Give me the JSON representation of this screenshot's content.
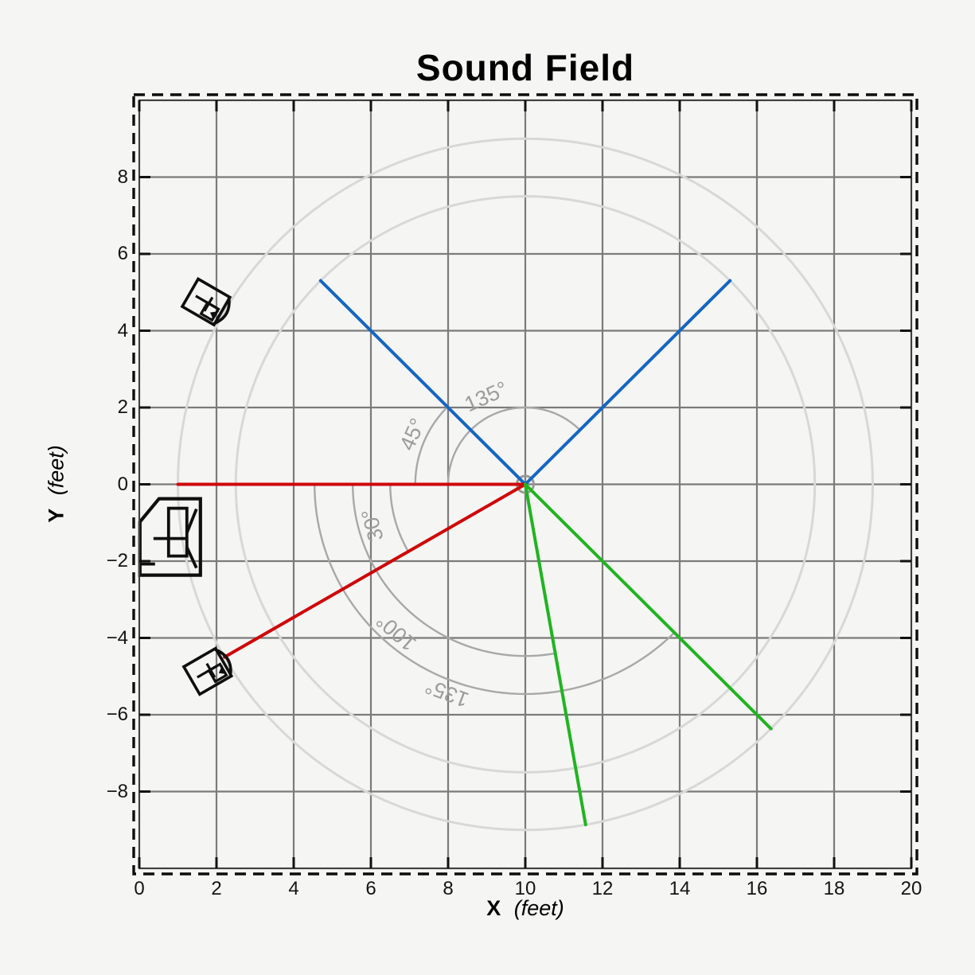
{
  "chart_data": {
    "type": "line",
    "title": "Sound Field",
    "xlabel": "X (feet)",
    "ylabel": "Y (feet)",
    "xlabel_symbol": "X",
    "xlabel_unit": "(feet)",
    "ylabel_symbol": "Y",
    "ylabel_unit": "(feet)",
    "xlim": [
      0,
      20
    ],
    "ylim": [
      -10,
      10
    ],
    "xticks": [
      0,
      2,
      4,
      6,
      8,
      10,
      12,
      14,
      16,
      18,
      20
    ],
    "yticks": [
      8,
      6,
      4,
      2,
      0,
      -2,
      -4,
      -6,
      -8
    ],
    "grid": {
      "on": true,
      "step": 2,
      "color": "#7b7b7b"
    },
    "room_border_style": "dashed",
    "listener": {
      "x": 10,
      "y": 0,
      "marker": "open-circle",
      "color": "#989898"
    },
    "range_circles": [
      {
        "radius_ft": 7.5,
        "color": "#d8d8d8"
      },
      {
        "radius_ft": 9,
        "color": "#d8d8d8"
      }
    ],
    "rays": [
      {
        "color": "#1466c3",
        "angle_deg": 45,
        "length_ft": 7.5
      },
      {
        "color": "#1466c3",
        "angle_deg": 135,
        "length_ft": 7.5
      },
      {
        "color": "#cf0707",
        "angle_deg": 180,
        "length_ft": 9
      },
      {
        "color": "#cf0707",
        "angle_deg": 210,
        "length_ft": 9
      },
      {
        "color": "#20b420",
        "angle_deg": 280,
        "length_ft": 9
      },
      {
        "color": "#20b420",
        "angle_deg": 315,
        "length_ft": 9
      }
    ],
    "angle_annotations": [
      {
        "label": "135°",
        "radius_ft": 2.0,
        "from_deg": 45,
        "to_deg": 180,
        "label_angle_deg": 114,
        "label_radius_ft": 2.5,
        "color": "#a8a8a8"
      },
      {
        "label": "45°",
        "radius_ft": 2.85,
        "from_deg": 135,
        "to_deg": 180,
        "label_angle_deg": 156,
        "label_radius_ft": 3.2,
        "color": "#a8a8a8"
      },
      {
        "label": "30°",
        "radius_ft": 3.5,
        "from_deg": 180,
        "to_deg": 210,
        "label_angle_deg": 195,
        "label_radius_ft": 4.1,
        "color": "#a8a8a8"
      },
      {
        "label": "100°",
        "radius_ft": 4.47,
        "from_deg": 180,
        "to_deg": 280,
        "label_angle_deg": 229,
        "label_radius_ft": 5.1,
        "color": "#a8a8a8"
      },
      {
        "label": "135°",
        "radius_ft": 5.46,
        "from_deg": 180,
        "to_deg": 315,
        "label_angle_deg": 249.5,
        "label_radius_ft": 5.8,
        "color": "#a8a8a8"
      }
    ],
    "speakers": [
      {
        "kind": "satellite",
        "x": 1.73,
        "y": 4.75,
        "facing_deg": -30
      },
      {
        "kind": "subwoofer",
        "x": 0.8,
        "y": -1.37,
        "facing_deg": 0
      },
      {
        "kind": "satellite",
        "x": 1.77,
        "y": -4.87,
        "facing_deg": 30
      }
    ]
  }
}
